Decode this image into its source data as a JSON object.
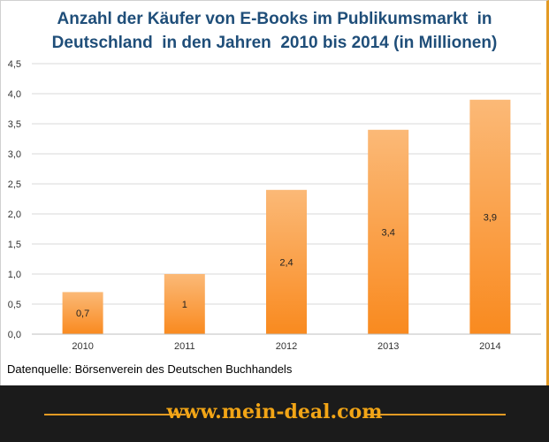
{
  "chart_data": {
    "type": "bar",
    "title_lines": [
      "Anzahl der Käufer von E-Books im Publikumsmarkt  in",
      "Deutschland  in den Jahren  2010 bis 2014 (in Millionen)"
    ],
    "categories": [
      "2010",
      "2011",
      "2012",
      "2013",
      "2014"
    ],
    "values": [
      0.7,
      1.0,
      2.4,
      3.4,
      3.9
    ],
    "data_labels": [
      "0,7",
      "1",
      "2,4",
      "3,4",
      "3,9"
    ],
    "ylim": [
      0,
      4.5
    ],
    "y_ticks": [
      "0,0",
      "0,5",
      "1,0",
      "1,5",
      "2,0",
      "2,5",
      "3,0",
      "3,5",
      "4,0",
      "4,5"
    ],
    "grid": true,
    "colors": {
      "bar_top": "#fbb977",
      "bar_bottom": "#f98a1f",
      "grid": "#d9d9d9",
      "title": "#1f4e79"
    }
  },
  "source_text": "Datenquelle: Börsenverein des Deutschen Buchhandels",
  "footer": {
    "url": "www.mein-deal.com",
    "accent_color": "#e39a24"
  }
}
